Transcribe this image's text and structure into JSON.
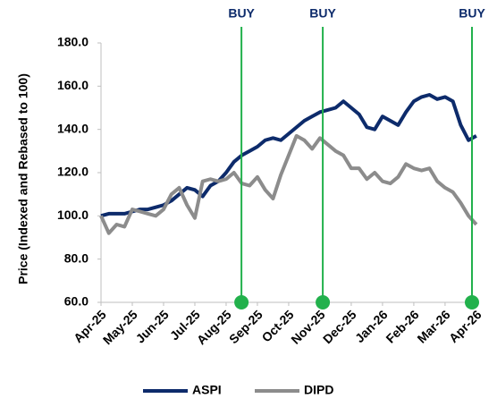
{
  "chart_data": {
    "type": "line",
    "y_label": "Price (Indexed and Rebased to 100)",
    "xlim": [
      0,
      12.06
    ],
    "xticks": [
      {
        "value": 0,
        "label": "Apr-25"
      },
      {
        "value": 1,
        "label": "May-25"
      },
      {
        "value": 2,
        "label": "Jun-25"
      },
      {
        "value": 3,
        "label": "Jul-25"
      },
      {
        "value": 4,
        "label": "Aug-25"
      },
      {
        "value": 5,
        "label": "Sep-25"
      },
      {
        "value": 6,
        "label": "Oct-25"
      },
      {
        "value": 7,
        "label": "Nov-25"
      },
      {
        "value": 8,
        "label": "Dec-25"
      },
      {
        "value": 9,
        "label": "Jan-26"
      },
      {
        "value": 10,
        "label": "Feb-26"
      },
      {
        "value": 11,
        "label": "Mar-26"
      },
      {
        "value": 12,
        "label": "Apr-26"
      }
    ],
    "ylim": [
      60,
      180
    ],
    "yticks": [
      {
        "value": 60,
        "label": "60.0"
      },
      {
        "value": 80,
        "label": "80.0"
      },
      {
        "value": 100,
        "label": "100.0"
      },
      {
        "value": 120,
        "label": "120.0"
      },
      {
        "value": 140,
        "label": "140.0"
      },
      {
        "value": 160,
        "label": "160.0"
      },
      {
        "value": 180,
        "label": "180.0"
      }
    ],
    "x": [
      0,
      0.25,
      0.5,
      0.75,
      1,
      1.25,
      1.5,
      1.75,
      2,
      2.25,
      2.5,
      2.75,
      3,
      3.25,
      3.5,
      3.75,
      4,
      4.25,
      4.5,
      4.75,
      5,
      5.25,
      5.5,
      5.75,
      6,
      6.25,
      6.5,
      6.75,
      7,
      7.25,
      7.5,
      7.75,
      8,
      8.25,
      8.5,
      8.75,
      9,
      9.25,
      9.5,
      9.75,
      10,
      10.25,
      10.5,
      10.75,
      11,
      11.25,
      11.5,
      11.75,
      12
    ],
    "series": [
      {
        "name": "ASPI",
        "color": "#0d2b6b",
        "values": [
          100,
          101,
          101,
          101,
          102,
          103,
          103,
          104,
          105,
          107,
          110,
          113,
          112,
          109,
          114,
          116,
          120,
          125,
          128,
          130,
          132,
          135,
          136,
          135,
          138,
          141,
          144,
          146,
          148,
          149,
          150,
          153,
          150,
          147,
          141,
          140,
          146,
          144,
          142,
          148,
          153,
          155,
          156,
          154,
          155,
          153,
          142,
          135,
          137
        ]
      },
      {
        "name": "DIPD",
        "color": "#8c8c8c",
        "values": [
          100,
          92,
          96,
          95,
          103,
          102,
          101,
          100,
          103,
          110,
          113,
          105,
          99,
          116,
          117,
          116,
          117,
          120,
          115,
          114,
          118,
          112,
          108,
          119,
          128,
          137,
          135,
          131,
          136,
          133,
          130,
          128,
          122,
          122,
          117,
          120,
          116,
          115,
          118,
          124,
          122,
          121,
          122,
          116,
          113,
          111,
          106,
          100,
          96
        ]
      }
    ],
    "annotations": [
      {
        "text": "BUY",
        "x": 4.49
      },
      {
        "text": "BUY",
        "x": 7.09
      },
      {
        "text": "BUY",
        "x": 11.86
      }
    ],
    "annotation_color": "#22b14c"
  }
}
